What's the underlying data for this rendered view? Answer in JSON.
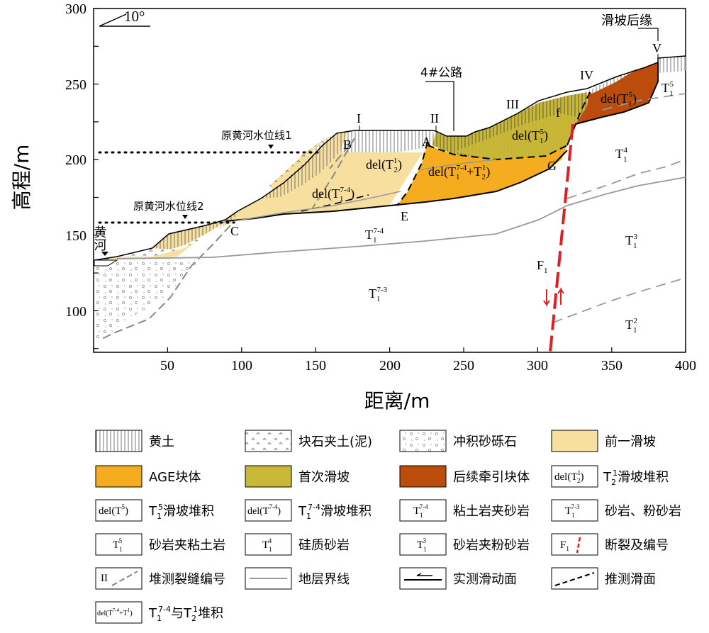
{
  "axes": {
    "xlabel": "距离/m",
    "ylabel": "高程/m",
    "xticks": [
      "50",
      "100",
      "150",
      "200",
      "250",
      "300",
      "350",
      "400"
    ],
    "yticks": [
      "300",
      "250",
      "200",
      "150",
      "100"
    ],
    "dip_label": "10°"
  },
  "profile": {
    "road_label": "4#公路",
    "rear_edge_label": "滑坡后缘",
    "river_label": "黄河",
    "water_level_1": "原黄河水位线1",
    "water_level_2": "原黄河水位线2",
    "cracks": [
      "I",
      "II",
      "III",
      "IV",
      "V"
    ],
    "points": [
      "A",
      "B",
      "C",
      "E",
      "G",
      "f"
    ],
    "fault": "F",
    "fault_sub": "1",
    "deposits": [
      {
        "base": "del(T",
        "sup": "",
        "sub": "2",
        "supx": "1",
        "tail": ")"
      },
      {
        "base": "del(T",
        "sup": "7-4",
        "sub": "1",
        "tail": ")"
      },
      {
        "base": "del(T",
        "sup": "7-4",
        "sub": "1",
        "mid": "+T",
        "sup2": "1",
        "sub2": "2",
        "tail": ")"
      },
      {
        "base": "del(T",
        "sup": "5",
        "sub": "1",
        "tail": ")"
      },
      {
        "base": "del(T",
        "sup": "5",
        "sub": "1",
        "tail": ")"
      }
    ],
    "strata": [
      {
        "base": "T",
        "sup": "7-4",
        "sub": "1"
      },
      {
        "base": "T",
        "sup": "7-3",
        "sub": "1"
      },
      {
        "base": "T",
        "sup": "5",
        "sub": "1"
      },
      {
        "base": "T",
        "sup": "4",
        "sub": "1"
      },
      {
        "base": "T",
        "sup": "3",
        "sub": "1"
      },
      {
        "base": "T",
        "sup": "2",
        "sub": "1"
      }
    ]
  },
  "legend": [
    {
      "icon": "loess-pattern",
      "text": "黄土"
    },
    {
      "icon": "rubble-soil-pattern",
      "text": "块石夹土(泥)"
    },
    {
      "icon": "alluvial-gravel-pattern",
      "text": "冲积砂砾石"
    },
    {
      "icon": "previous-landslide-fill",
      "text": "前一滑坡"
    },
    {
      "icon": "age-block-fill",
      "text": "AGE块体"
    },
    {
      "icon": "first-landslide-fill",
      "text": "首次滑坡"
    },
    {
      "icon": "retrogressive-block-fill",
      "text": "后续牵引块体"
    },
    {
      "icon": "del-T2-box",
      "text": "滑坡堆积",
      "prefix": "T",
      "prefix_sup": "1",
      "prefix_sub": "2"
    },
    {
      "icon": "del-T1-5-box",
      "text": "滑坡堆积",
      "prefix": "T",
      "prefix_sup": "5",
      "prefix_sub": "1"
    },
    {
      "icon": "del-T1-7-4-box",
      "text": "滑坡堆积",
      "prefix": "T",
      "prefix_sup": "7-4",
      "prefix_sub": "1"
    },
    {
      "icon": "T1-7-4-box",
      "text": "粘土岩夹砂岩"
    },
    {
      "icon": "T1-7-3-box",
      "text": "砂岩、粉砂岩"
    },
    {
      "icon": "T1-5-box",
      "text": "砂岩夹粘土岩"
    },
    {
      "icon": "T1-4-box",
      "text": "硅质砂岩"
    },
    {
      "icon": "T1-3-box",
      "text": "砂岩夹粉砂岩"
    },
    {
      "icon": "fault-icon",
      "text": "断裂及编号"
    },
    {
      "icon": "crack-number-icon",
      "text": "堆测裂缝编号"
    },
    {
      "icon": "stratum-boundary-icon",
      "text": "地层界线"
    },
    {
      "icon": "measured-slip-surface-icon",
      "text": "实测滑动面"
    },
    {
      "icon": "inferred-slip-surface-icon",
      "text": "推测滑面"
    },
    {
      "icon": "del-T1-7-4-T2-box",
      "text": "堆积",
      "prefix": "T",
      "prefix_sup": "7-4",
      "prefix_sub": "1",
      "join": "与T",
      "join_sup": "1",
      "join_sub": "2"
    }
  ],
  "colors": {
    "loess": "#ffffff",
    "previous_landslide": "#f7dfa0",
    "age_block": "#f5ac1e",
    "first_landslide": "#c9b838",
    "retrogressive_block": "#bc4c0c",
    "fault": "#e02020",
    "boundary": "#999999"
  }
}
